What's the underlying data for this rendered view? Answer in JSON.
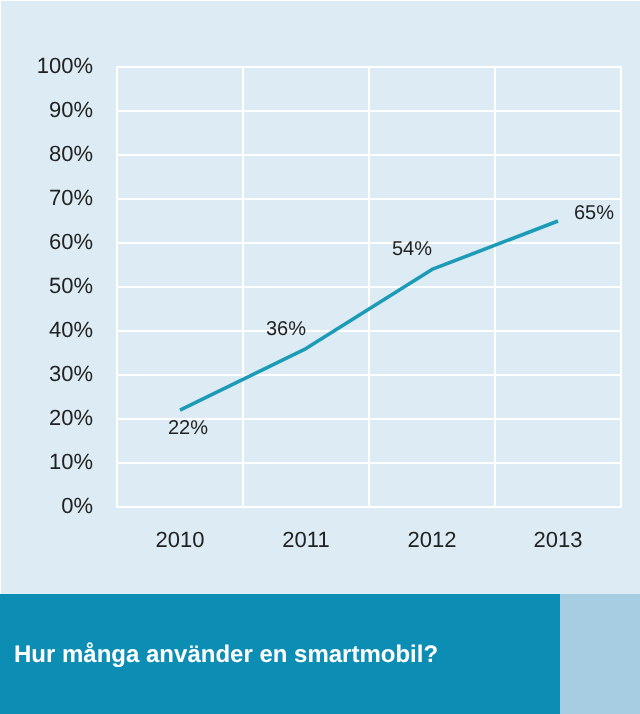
{
  "chart_data": {
    "type": "line",
    "title": "Hur många använder en smartmobil?",
    "categories": [
      "2010",
      "2011",
      "2012",
      "2013"
    ],
    "series": [
      {
        "color": "#1b9bb6",
        "values": [
          22,
          36,
          54,
          65
        ],
        "value_labels": [
          "22%",
          "36%",
          "54%",
          "65%"
        ]
      }
    ],
    "ylim": [
      0,
      100
    ],
    "yticks": [
      {
        "value": 0,
        "label": "0%"
      },
      {
        "value": 10,
        "label": "10%"
      },
      {
        "value": 20,
        "label": "20%"
      },
      {
        "value": 30,
        "label": "30%"
      },
      {
        "value": 40,
        "label": "40%"
      },
      {
        "value": 50,
        "label": "50%"
      },
      {
        "value": 60,
        "label": "60%"
      },
      {
        "value": 70,
        "label": "70%"
      },
      {
        "value": 80,
        "label": "80%"
      },
      {
        "value": 90,
        "label": "90%"
      },
      {
        "value": 100,
        "label": "100%"
      }
    ],
    "grid": true,
    "marker": "none",
    "line_style": "solid"
  }
}
